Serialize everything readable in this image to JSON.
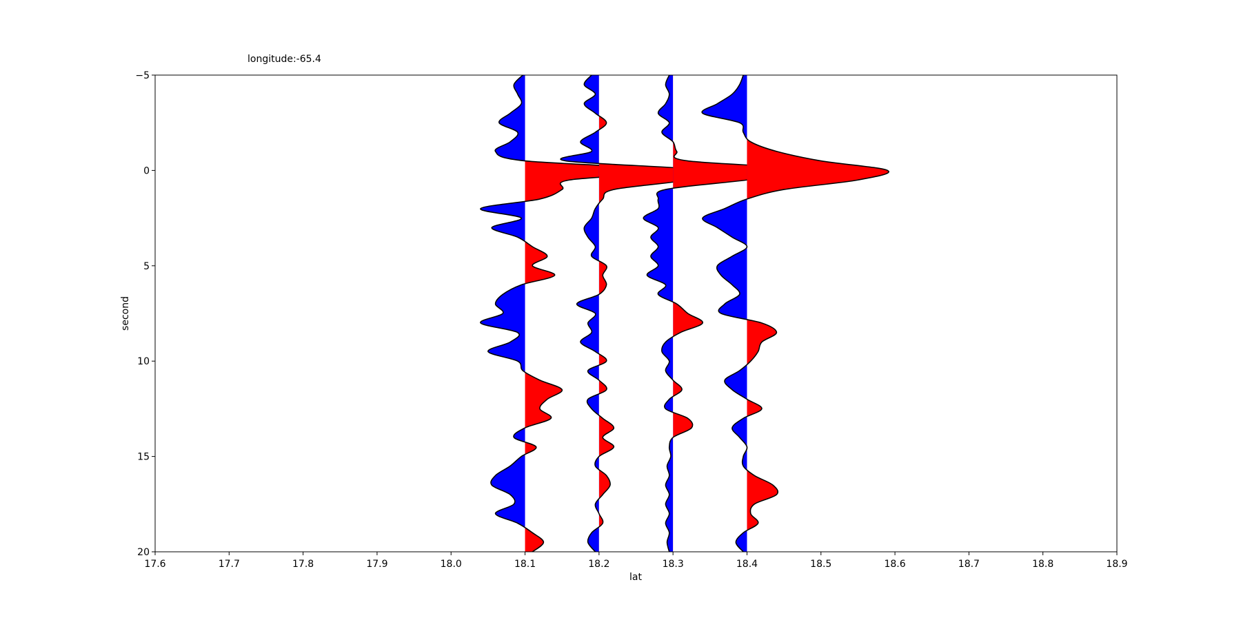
{
  "chart_data": {
    "type": "wiggle",
    "title": "longitude:-65.4",
    "xlabel": "lat",
    "ylabel": "second",
    "xlim": [
      17.6,
      18.9
    ],
    "xticks": [
      17.6,
      17.7,
      17.8,
      17.9,
      {
        "value": 18,
        "label": "18.0"
      },
      18.1,
      18.2,
      18.3,
      18.4,
      18.5,
      18.6,
      18.7,
      18.8,
      18.9
    ],
    "ylim": [
      -5,
      20
    ],
    "yticks": [
      {
        "value": -5,
        "label": "−5"
      },
      0,
      5,
      10,
      15,
      20
    ],
    "y_inverted": true,
    "positive_color": "red",
    "negative_color": "blue",
    "x": [
      -5,
      -4.5,
      -4,
      -3.5,
      -3,
      -2.5,
      -2,
      -1.5,
      -1,
      -0.5,
      0,
      0.5,
      1,
      1.5,
      2,
      2.5,
      3,
      3.5,
      4,
      4.5,
      5,
      5.5,
      6,
      6.5,
      7,
      7.5,
      8,
      8.5,
      9,
      9.5,
      10,
      10.5,
      11,
      11.5,
      12,
      12.5,
      13,
      13.5,
      14,
      14.5,
      15,
      15.5,
      16,
      16.5,
      17,
      17.5,
      18,
      18.5,
      19,
      19.5,
      20
    ],
    "series": [
      {
        "offset": 18.1,
        "values": [
          -0.003,
          -0.015,
          -0.01,
          -0.005,
          -0.02,
          -0.035,
          -0.01,
          -0.02,
          -0.04,
          0.0,
          0.2,
          0.06,
          0.05,
          0.02,
          -0.06,
          -0.005,
          -0.045,
          -0.01,
          0.01,
          0.03,
          0.01,
          0.04,
          -0.005,
          -0.03,
          -0.04,
          -0.03,
          -0.06,
          -0.01,
          -0.02,
          -0.05,
          -0.01,
          -0.003,
          0.02,
          0.05,
          0.03,
          0.02,
          0.035,
          0.0,
          -0.015,
          0.015,
          -0.005,
          -0.02,
          -0.04,
          -0.045,
          -0.02,
          -0.015,
          -0.04,
          -0.01,
          0.01,
          0.025,
          0.01
        ]
      },
      {
        "offset": 18.2,
        "values": [
          -0.01,
          -0.02,
          -0.005,
          -0.02,
          -0.005,
          0.01,
          -0.005,
          -0.025,
          -0.01,
          -0.045,
          0.15,
          0.12,
          0.02,
          0.005,
          -0.005,
          -0.01,
          -0.02,
          -0.015,
          -0.005,
          -0.01,
          0.01,
          0.005,
          0.01,
          0.0,
          -0.03,
          -0.005,
          -0.015,
          -0.01,
          -0.025,
          -0.005,
          0.01,
          -0.015,
          0.0,
          0.01,
          -0.015,
          -0.01,
          0.005,
          0.02,
          0.005,
          0.02,
          0.0,
          -0.005,
          0.01,
          0.015,
          0.005,
          -0.005,
          0.0,
          0.005,
          -0.01,
          -0.015,
          -0.005
        ]
      },
      {
        "offset": 18.3,
        "values": [
          -0.005,
          -0.01,
          -0.005,
          -0.01,
          -0.02,
          -0.005,
          -0.015,
          0.0,
          0.005,
          0.02,
          0.2,
          0.1,
          -0.01,
          -0.02,
          -0.02,
          -0.04,
          -0.02,
          -0.03,
          -0.02,
          -0.03,
          -0.02,
          -0.035,
          -0.01,
          -0.02,
          0.005,
          0.02,
          0.04,
          0.01,
          -0.01,
          -0.015,
          -0.005,
          -0.01,
          0.0,
          0.012,
          -0.005,
          -0.01,
          0.02,
          0.025,
          0.0,
          -0.005,
          -0.003,
          -0.008,
          -0.005,
          -0.01,
          -0.005,
          -0.01,
          -0.005,
          -0.01,
          -0.005,
          -0.008,
          -0.005
        ]
      },
      {
        "offset": 18.4,
        "values": [
          -0.005,
          -0.01,
          -0.02,
          -0.04,
          -0.06,
          -0.01,
          -0.005,
          0.005,
          0.04,
          0.1,
          0.19,
          0.15,
          0.05,
          0.0,
          -0.03,
          -0.06,
          -0.04,
          -0.02,
          0.0,
          -0.02,
          -0.04,
          -0.035,
          -0.02,
          -0.01,
          -0.03,
          -0.035,
          0.02,
          0.04,
          0.02,
          0.015,
          0.005,
          -0.01,
          -0.03,
          -0.02,
          0.0,
          0.02,
          -0.005,
          -0.02,
          -0.01,
          0.0,
          -0.005,
          -0.005,
          0.01,
          0.035,
          0.04,
          0.01,
          0.005,
          0.015,
          -0.005,
          -0.015,
          -0.005
        ]
      }
    ]
  }
}
